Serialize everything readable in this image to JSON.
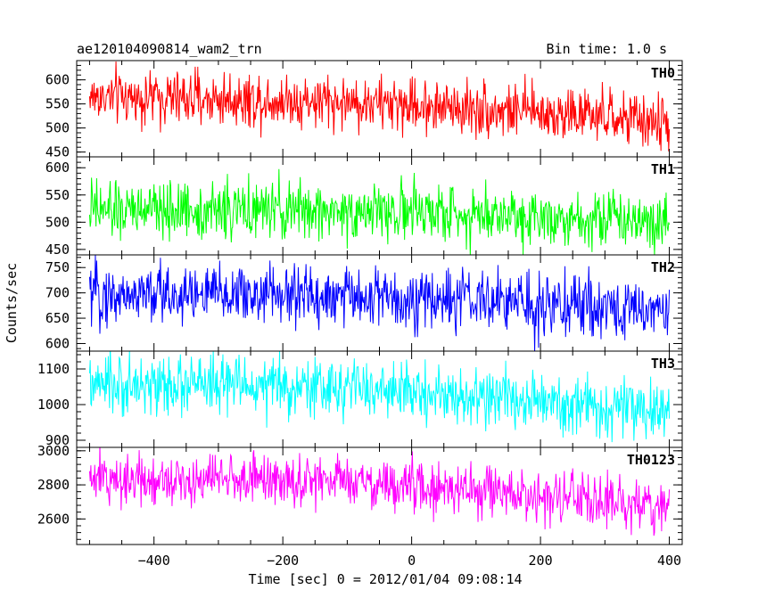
{
  "header": {
    "title": "ae120104090814_wam2_trn",
    "bin_time": "Bin time: 1.0 s"
  },
  "chart_data": {
    "type": "line",
    "title": "ae120104090814_wam2_trn",
    "xlabel": "Time [sec] 0 = 2012/01/04 09:08:14",
    "ylabel": "Counts/sec",
    "xlim": [
      -520,
      420
    ],
    "x_ticks": [
      -400,
      -200,
      0,
      200,
      400
    ],
    "x_tick_labels": [
      "−400",
      "−200",
      "0",
      "200",
      "400"
    ],
    "data_x_range": [
      -500,
      400
    ],
    "grid": false,
    "panels": [
      {
        "name": "TH0",
        "color": "#ff0000",
        "ylim": [
          440,
          640
        ],
        "y_ticks": [
          450,
          500,
          550,
          600
        ],
        "y_tick_labels": [
          "450",
          "500",
          "550",
          "600"
        ],
        "trend_x": [
          -500,
          -400,
          -300,
          -200,
          -100,
          0,
          100,
          200,
          300,
          400
        ],
        "trend_y": [
          565,
          563,
          560,
          558,
          553,
          548,
          540,
          533,
          522,
          508
        ],
        "noise_amplitude": 28
      },
      {
        "name": "TH1",
        "color": "#00ff00",
        "ylim": [
          440,
          620
        ],
        "y_ticks": [
          450,
          500,
          550,
          600
        ],
        "y_tick_labels": [
          "450",
          "500",
          "550",
          "600"
        ],
        "trend_x": [
          -500,
          -400,
          -300,
          -200,
          -100,
          0,
          100,
          200,
          300,
          400
        ],
        "trend_y": [
          520,
          522,
          522,
          521,
          520,
          519,
          515,
          512,
          508,
          505
        ],
        "noise_amplitude": 26
      },
      {
        "name": "TH2",
        "color": "#0000ff",
        "ylim": [
          585,
          775
        ],
        "y_ticks": [
          600,
          650,
          700,
          750
        ],
        "y_tick_labels": [
          "600",
          "650",
          "700",
          "750"
        ],
        "trend_x": [
          -500,
          -400,
          -300,
          -200,
          -100,
          0,
          100,
          200,
          300,
          400
        ],
        "trend_y": [
          695,
          697,
          697,
          696,
          693,
          688,
          683,
          677,
          671,
          665
        ],
        "noise_amplitude": 30
      },
      {
        "name": "TH3",
        "color": "#00ffff",
        "ylim": [
          880,
          1150
        ],
        "y_ticks": [
          900,
          1000,
          1100
        ],
        "y_tick_labels": [
          "900",
          "1000",
          "1100"
        ],
        "trend_x": [
          -500,
          -400,
          -300,
          -200,
          -100,
          0,
          100,
          200,
          300,
          400
        ],
        "trend_y": [
          1050,
          1055,
          1055,
          1050,
          1045,
          1035,
          1020,
          1005,
          990,
          975
        ],
        "noise_amplitude": 40
      },
      {
        "name": "TH0123",
        "color": "#ff00ff",
        "ylim": [
          2450,
          3020
        ],
        "y_ticks": [
          2600,
          2800,
          3000
        ],
        "y_tick_labels": [
          "2600",
          "2800",
          "3000"
        ],
        "trend_x": [
          -500,
          -400,
          -300,
          -200,
          -100,
          0,
          100,
          200,
          300,
          400
        ],
        "trend_y": [
          2830,
          2840,
          2838,
          2830,
          2815,
          2790,
          2760,
          2730,
          2700,
          2670
        ],
        "noise_amplitude": 75
      }
    ]
  }
}
